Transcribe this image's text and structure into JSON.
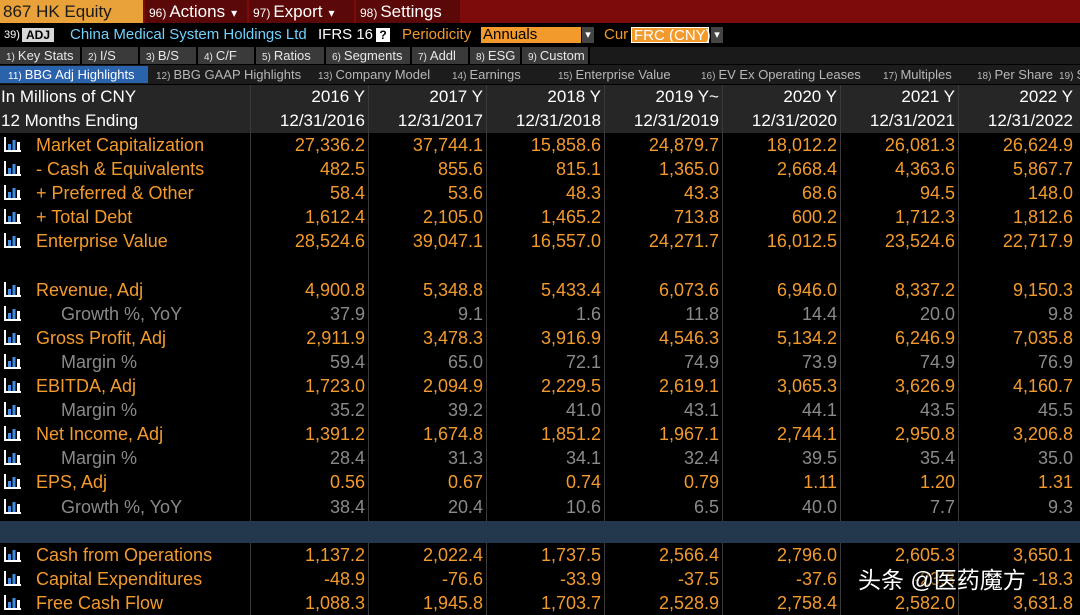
{
  "toolbar": {
    "security": "867 HK Equity",
    "menus": [
      {
        "num": "96)",
        "label": "Actions",
        "arrow": "▾"
      },
      {
        "num": "97)",
        "label": "Export",
        "arrow": "▾"
      },
      {
        "num": "98)",
        "label": "Settings"
      }
    ]
  },
  "info": {
    "code": "39)",
    "badge": "ADJ",
    "company": "China Medical System Holdings Ltd",
    "standard": "IFRS 16",
    "help": "?",
    "periodicity_label": "Periodicity",
    "periodicity": "Annuals",
    "currency_label": "Cur",
    "currency": "FRC (CNY)",
    "arrow": "▾"
  },
  "tabs": [
    {
      "num": "1)",
      "label": "Key Stats"
    },
    {
      "num": "2)",
      "label": "I/S"
    },
    {
      "num": "3)",
      "label": "B/S"
    },
    {
      "num": "4)",
      "label": "C/F"
    },
    {
      "num": "5)",
      "label": "Ratios"
    },
    {
      "num": "6)",
      "label": "Segments"
    },
    {
      "num": "7)",
      "label": "Addl"
    },
    {
      "num": "8)",
      "label": "ESG"
    },
    {
      "num": "9)",
      "label": "Custom"
    }
  ],
  "subtabs": [
    {
      "num": "11)",
      "label": "BBG Adj Highlights",
      "selected": true
    },
    {
      "num": "12)",
      "label": "BBG GAAP Highlights"
    },
    {
      "num": "13)",
      "label": "Company Model"
    },
    {
      "num": "14)",
      "label": "Earnings"
    },
    {
      "num": "15)",
      "label": "Enterprise Value"
    },
    {
      "num": "16)",
      "label": "EV Ex Operating Leases"
    },
    {
      "num": "17)",
      "label": "Multiples"
    },
    {
      "num": "18)",
      "label": "Per Share"
    },
    {
      "num": "19)",
      "label": "Sto"
    }
  ],
  "table": {
    "header_labels": [
      "In Millions of CNY",
      "12 Months Ending"
    ],
    "columns": [
      {
        "year": "2016 Y",
        "date": "12/31/2016"
      },
      {
        "year": "2017 Y",
        "date": "12/31/2017"
      },
      {
        "year": "2018 Y",
        "date": "12/31/2018"
      },
      {
        "year": "2019 Y~",
        "date": "12/31/2019"
      },
      {
        "year": "2020 Y",
        "date": "12/31/2020"
      },
      {
        "year": "2021 Y",
        "date": "12/31/2021"
      },
      {
        "year": "2022 Y",
        "date": "12/31/2022"
      }
    ],
    "sections": [
      [
        {
          "label": "Market Capitalization",
          "values": [
            "27,336.2",
            "37,744.1",
            "15,858.6",
            "24,879.7",
            "18,012.2",
            "26,081.3",
            "26,624.9"
          ]
        },
        {
          "label": "- Cash & Equivalents",
          "values": [
            "482.5",
            "855.6",
            "815.1",
            "1,365.0",
            "2,668.4",
            "4,363.6",
            "5,867.7"
          ]
        },
        {
          "label": "+ Preferred & Other",
          "values": [
            "58.4",
            "53.6",
            "48.3",
            "43.3",
            "68.6",
            "94.5",
            "148.0"
          ]
        },
        {
          "label": "+ Total Debt",
          "values": [
            "1,612.4",
            "2,105.0",
            "1,465.2",
            "713.8",
            "600.2",
            "1,712.3",
            "1,812.6"
          ]
        },
        {
          "label": "Enterprise Value",
          "values": [
            "28,524.6",
            "39,047.1",
            "16,557.0",
            "24,271.7",
            "16,012.5",
            "23,524.6",
            "22,717.9"
          ]
        }
      ],
      [
        {
          "label": "Revenue, Adj",
          "values": [
            "4,900.8",
            "5,348.8",
            "5,433.4",
            "6,073.6",
            "6,946.0",
            "8,337.2",
            "9,150.3"
          ]
        },
        {
          "label": "Growth %, YoY",
          "detail": true,
          "values": [
            "37.9",
            "9.1",
            "1.6",
            "11.8",
            "14.4",
            "20.0",
            "9.8"
          ]
        },
        {
          "label": "Gross Profit, Adj",
          "values": [
            "2,911.9",
            "3,478.3",
            "3,916.9",
            "4,546.3",
            "5,134.2",
            "6,246.9",
            "7,035.8"
          ]
        },
        {
          "label": "Margin %",
          "detail": true,
          "values": [
            "59.4",
            "65.0",
            "72.1",
            "74.9",
            "73.9",
            "74.9",
            "76.9"
          ]
        },
        {
          "label": "EBITDA, Adj",
          "values": [
            "1,723.0",
            "2,094.9",
            "2,229.5",
            "2,619.1",
            "3,065.3",
            "3,626.9",
            "4,160.7"
          ]
        },
        {
          "label": "Margin %",
          "detail": true,
          "values": [
            "35.2",
            "39.2",
            "41.0",
            "43.1",
            "44.1",
            "43.5",
            "45.5"
          ]
        },
        {
          "label": "Net Income, Adj",
          "values": [
            "1,391.2",
            "1,674.8",
            "1,851.2",
            "1,967.1",
            "2,744.1",
            "2,950.8",
            "3,206.8"
          ]
        },
        {
          "label": "Margin %",
          "detail": true,
          "values": [
            "28.4",
            "31.3",
            "34.1",
            "32.4",
            "39.5",
            "35.4",
            "35.0"
          ]
        },
        {
          "label": "EPS, Adj",
          "values": [
            "0.56",
            "0.67",
            "0.74",
            "0.79",
            "1.11",
            "1.20",
            "1.31"
          ]
        },
        {
          "label": "Growth %, YoY",
          "detail": true,
          "values": [
            "38.4",
            "20.4",
            "10.6",
            "6.5",
            "40.0",
            "7.7",
            "9.3"
          ]
        }
      ],
      [
        {
          "label": "Cash from Operations",
          "values": [
            "1,137.2",
            "2,022.4",
            "1,737.5",
            "2,566.4",
            "2,796.0",
            "2,605.3",
            "3,650.1"
          ]
        },
        {
          "label": "Capital Expenditures",
          "values": [
            "-48.9",
            "-76.6",
            "-33.9",
            "-37.5",
            "-37.6",
            "-23.3",
            "-18.3"
          ]
        },
        {
          "label": "Free Cash Flow",
          "values": [
            "1,088.3",
            "1,945.8",
            "1,703.7",
            "2,528.9",
            "2,758.4",
            "2,582.0",
            "3,631.8"
          ]
        }
      ]
    ]
  },
  "watermark": "头条 @医药魔方"
}
